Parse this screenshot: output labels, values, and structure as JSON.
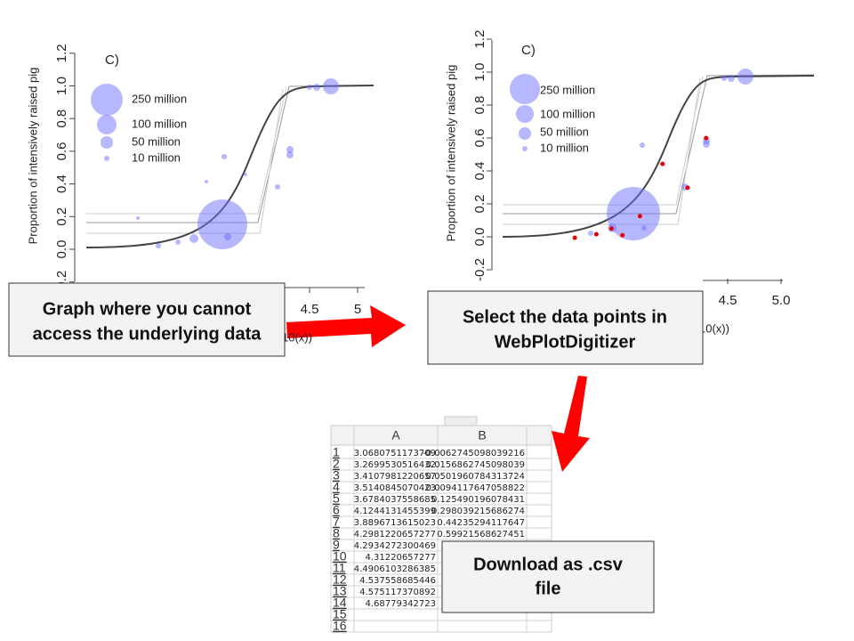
{
  "left_graph": {
    "panel_label": "C)",
    "y_axis_label": "Proportion of intensively raised pig",
    "x_axis_label": "10(x))",
    "yticks": [
      {
        "value": -0.2,
        "label": "-0.2"
      },
      {
        "value": 0,
        "label": "0.0"
      },
      0.2,
      0.4,
      0.6,
      0.8,
      {
        "value": 1,
        "label": "1.0"
      },
      1.2
    ],
    "xticks": [
      4.5,
      5
    ],
    "legend": [
      "250 million",
      "100 million",
      "50 million",
      "10 million"
    ]
  },
  "right_graph": {
    "panel_label": "C)",
    "y_axis_label": "Proportion of intensively raised pig",
    "x_axis_label": "10(x))",
    "yticks": [
      -0.2,
      {
        "value": 0,
        "label": "0.0"
      },
      0.2,
      0.4,
      0.6,
      0.8,
      {
        "value": 1,
        "label": "1.0"
      },
      1.2
    ],
    "xticks": [
      4.5,
      {
        "value": 5,
        "label": "5.0"
      }
    ],
    "legend": [
      "250 million",
      "100 million",
      "50 million",
      "10 million"
    ]
  },
  "spreadsheet": {
    "columns": [
      "A",
      "B"
    ],
    "row_numbers": [
      1,
      2,
      3,
      4,
      5,
      6,
      7,
      8,
      9,
      10,
      11,
      12,
      13,
      14,
      15,
      16
    ],
    "rows": [
      [
        3.0680751173709,
        -0.0062745098039216
      ],
      [
        3.2699530516432,
        0.0156862745098039
      ],
      [
        3.4107981220657,
        0.0501960784313724
      ],
      [
        3.5140845070423,
        0.0094117647058822
      ],
      [
        3.6784037558685,
        0.125490196078431
      ],
      [
        4.1244131455399,
        0.298039215686274
      ],
      [
        3.8896713615023,
        0.44235294117647
      ],
      [
        4.2981220657277,
        0.59921568627451
      ],
      [
        4.2934272300469
      ],
      [
        4.31220657277
      ],
      [
        4.4906103286385
      ],
      [
        4.537558685446
      ],
      [
        4.575117370892
      ],
      [
        4.68779342723
      ]
    ]
  },
  "callouts": [
    [
      "Graph where you cannot",
      "access the underlying data"
    ],
    [
      "Select the data points in",
      "WebPlotDigitizer"
    ],
    [
      "Download as .csv",
      "file"
    ]
  ]
}
